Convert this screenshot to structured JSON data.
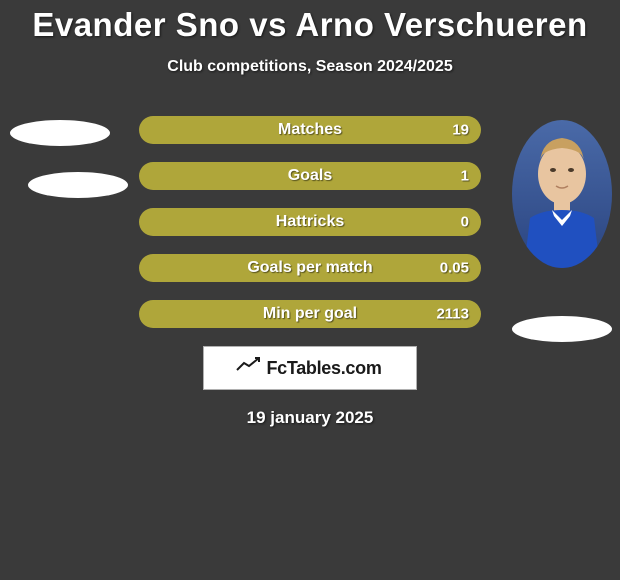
{
  "background_color": "#3a3a3a",
  "text_color": "#ffffff",
  "title": "Evander Sno vs Arno Verschueren",
  "title_fontsize": 33,
  "subtitle": "Club competitions, Season 2024/2025",
  "subtitle_fontsize": 16,
  "bar_color": "#afa63a",
  "bar_label_fontsize": 16,
  "bar_value_fontsize": 15,
  "rows": [
    {
      "label": "Matches",
      "value": "19"
    },
    {
      "label": "Goals",
      "value": "1"
    },
    {
      "label": "Hattricks",
      "value": "0"
    },
    {
      "label": "Goals per match",
      "value": "0.05"
    },
    {
      "label": "Min per goal",
      "value": "2113"
    }
  ],
  "brand": "FcTables.com",
  "date": "19 january 2025",
  "date_fontsize": 17,
  "right_photo": {
    "bg_top": "#4a6aa8",
    "bg_bottom": "#2a4480",
    "skin": "#e8c5a0",
    "hair": "#c8a060",
    "jersey": "#2050c0"
  }
}
